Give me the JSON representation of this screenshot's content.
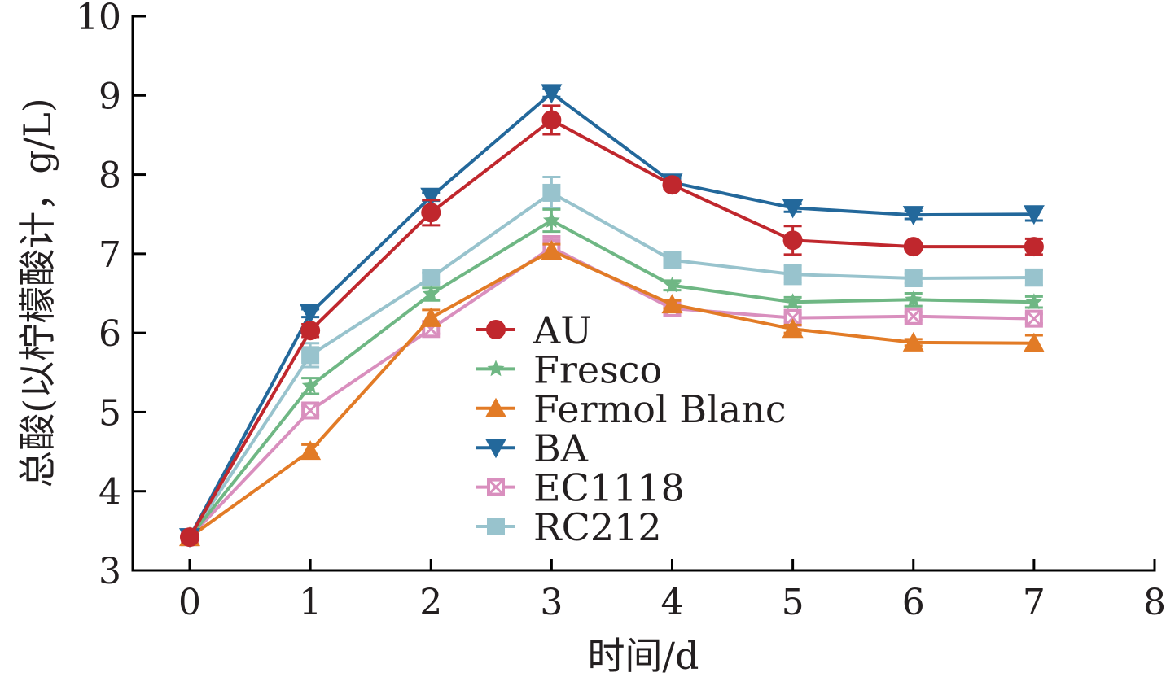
{
  "chart_data": {
    "type": "line",
    "title": "",
    "xlabel": "时间/d",
    "ylabel": "总酸(以柠檬酸计，g/L)",
    "xlim": [
      0,
      8
    ],
    "ylim": [
      3,
      10
    ],
    "xticks": [
      "0",
      "1",
      "2",
      "3",
      "4",
      "5",
      "6",
      "7",
      "8"
    ],
    "yticks": [
      "3",
      "4",
      "5",
      "6",
      "7",
      "8",
      "9",
      "10"
    ],
    "grid": false,
    "legend_position": "center",
    "x": [
      0,
      1,
      2,
      3,
      4,
      5,
      6,
      7
    ],
    "series": [
      {
        "name": "AU",
        "color": "#c0272d",
        "marker": "circle",
        "values": [
          3.42,
          6.03,
          7.52,
          8.69,
          7.87,
          7.17,
          7.09,
          7.09
        ],
        "errors": [
          0.03,
          0.08,
          0.16,
          0.18,
          0.05,
          0.18,
          0.03,
          0.1
        ]
      },
      {
        "name": "Fresco",
        "color": "#6fb784",
        "marker": "star",
        "values": [
          3.42,
          5.33,
          6.49,
          7.42,
          6.6,
          6.39,
          6.42,
          6.39
        ],
        "errors": [
          0.03,
          0.1,
          0.08,
          0.14,
          0.06,
          0.06,
          0.08,
          0.07
        ]
      },
      {
        "name": "Fermol Blanc",
        "color": "#e27b26",
        "marker": "triangle-up",
        "values": [
          3.42,
          4.51,
          6.19,
          7.04,
          6.36,
          6.05,
          5.88,
          5.87
        ],
        "errors": [
          0.03,
          0.08,
          0.1,
          0.08,
          0.05,
          0.05,
          0.04,
          0.1
        ]
      },
      {
        "name": "BA",
        "color": "#23689b",
        "marker": "triangle-down",
        "values": [
          3.42,
          6.25,
          7.72,
          9.03,
          7.9,
          7.58,
          7.49,
          7.5
        ],
        "errors": [
          0.03,
          0.05,
          0.05,
          0.05,
          0.05,
          0.05,
          0.05,
          0.08
        ]
      },
      {
        "name": "EC1118",
        "color": "#d98fbe",
        "marker": "square-x",
        "values": [
          3.42,
          5.02,
          6.05,
          7.08,
          6.31,
          6.19,
          6.21,
          6.18
        ],
        "errors": [
          0.03,
          0.06,
          0.06,
          0.14,
          0.05,
          0.05,
          0.05,
          0.06
        ]
      },
      {
        "name": "RC212",
        "color": "#98c3cd",
        "marker": "square",
        "values": [
          3.42,
          5.72,
          6.7,
          7.77,
          6.92,
          6.74,
          6.69,
          6.7
        ],
        "errors": [
          0.03,
          0.15,
          0.06,
          0.2,
          0.06,
          0.12,
          0.06,
          0.1
        ]
      }
    ]
  }
}
